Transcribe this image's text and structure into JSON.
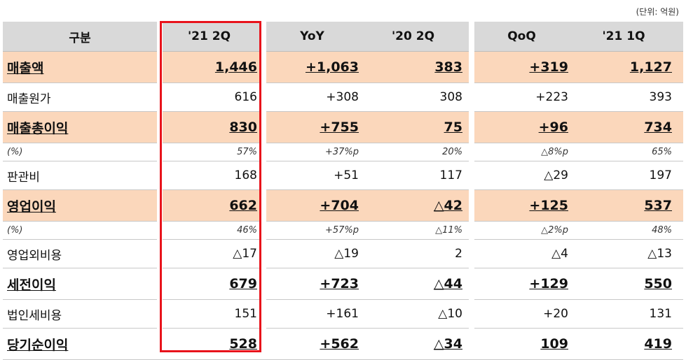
{
  "unit_label": "(단위: 억원)",
  "header": [
    "구분",
    "'21 2Q",
    "YoY",
    "'20 2Q",
    "QoQ",
    "'21 1Q"
  ],
  "rows": [
    {
      "style": "major",
      "cells": [
        "매출액",
        "1,446",
        "+1,063",
        "383",
        "+319",
        "1,127"
      ]
    },
    {
      "style": "plain",
      "cells": [
        "매출원가",
        "616",
        "+308",
        "308",
        "+223",
        "393"
      ]
    },
    {
      "style": "major",
      "cells": [
        "매출총이익",
        "830",
        "+755",
        "75",
        "+96",
        "734"
      ]
    },
    {
      "style": "pct",
      "cells": [
        "(%)",
        "57%",
        "+37%p",
        "20%",
        "△8%p",
        "65%"
      ]
    },
    {
      "style": "plain",
      "cells": [
        "판관비",
        "168",
        "+51",
        "117",
        "△29",
        "197"
      ]
    },
    {
      "style": "major",
      "cells": [
        "영업이익",
        "662",
        "+704",
        "△42",
        "+125",
        "537"
      ]
    },
    {
      "style": "pct",
      "cells": [
        "(%)",
        "46%",
        "+57%p",
        "△11%",
        "△2%p",
        "48%"
      ]
    },
    {
      "style": "plain",
      "cells": [
        "영업외비용",
        "△17",
        "△19",
        "2",
        "△4",
        "△13"
      ]
    },
    {
      "style": "bold-plain",
      "cells": [
        "세전이익",
        "679",
        "+723",
        "△44",
        "+129",
        "550"
      ]
    },
    {
      "style": "plain",
      "cells": [
        "법인세비용",
        "151",
        "+161",
        "△10",
        "+20",
        "131"
      ]
    },
    {
      "style": "bold-plain",
      "cells": [
        "당기순이익",
        "528",
        "+562",
        "△34",
        "109",
        "419"
      ]
    }
  ],
  "highlight_color": "#e8131b",
  "major_row_color": "#fbd7bb",
  "header_color": "#d9d9d9"
}
